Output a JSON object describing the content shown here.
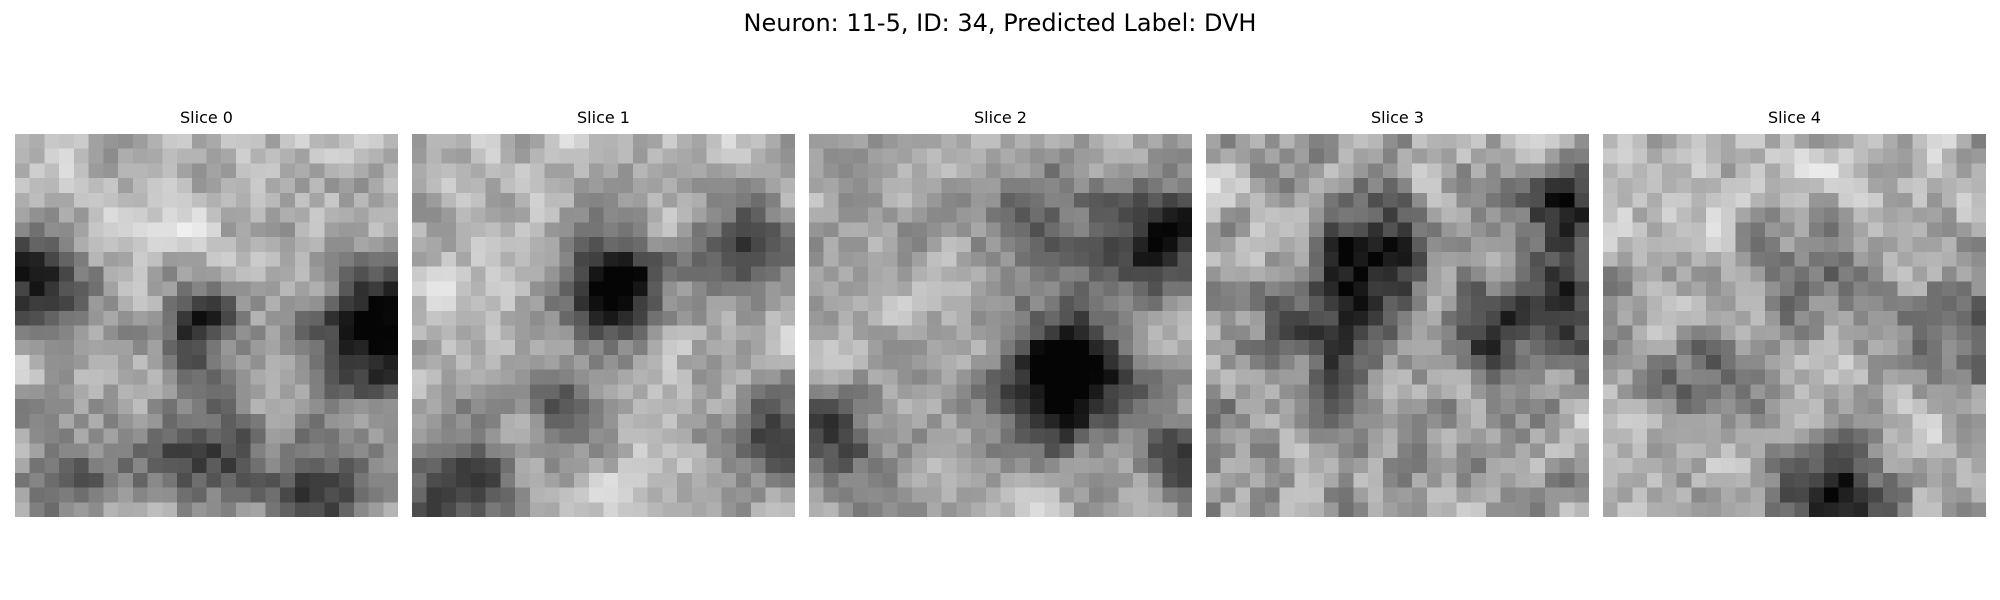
{
  "figure": {
    "title": "Neuron: 11-5, ID: 34, Predicted Label: DVH"
  },
  "panels": [
    {
      "title": "Slice 0",
      "colormap": "gray"
    },
    {
      "title": "Slice 1",
      "colormap": "gray"
    },
    {
      "title": "Slice 2",
      "colormap": "gray"
    },
    {
      "title": "Slice 3",
      "colormap": "gray"
    },
    {
      "title": "Slice 4",
      "colormap": "gray"
    }
  ]
}
